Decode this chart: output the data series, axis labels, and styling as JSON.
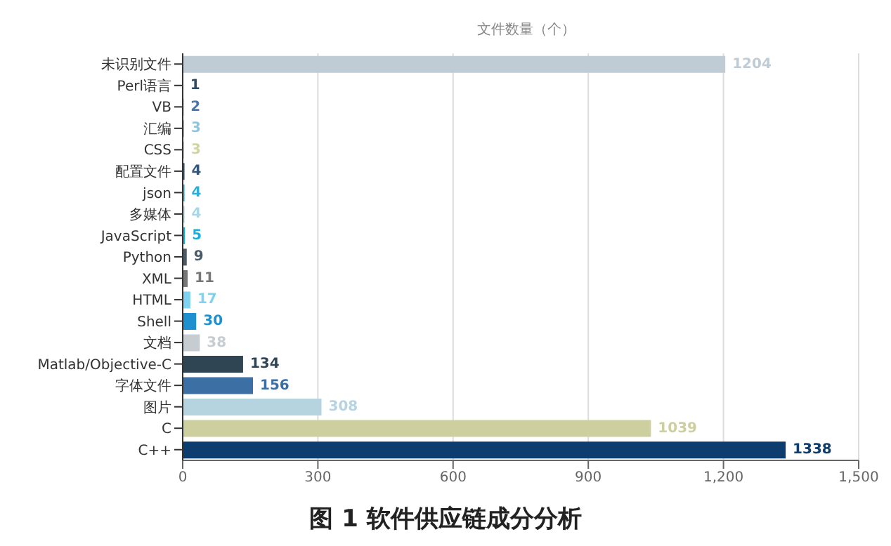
{
  "chart_data": {
    "type": "bar",
    "orientation": "horizontal",
    "title": "图 1 软件供应链成分分析",
    "xlabel": "文件数量（个）",
    "categories": [
      "未识别文件",
      "Perl语言",
      "VB",
      "汇编",
      "CSS",
      "配置文件",
      "json",
      "多媒体",
      "JavaScript",
      "Python",
      "XML",
      "HTML",
      "Shell",
      "文档",
      "Matlab/Objective-C",
      "字体文件",
      "图片",
      "C",
      "C++"
    ],
    "values": [
      1204,
      1,
      2,
      3,
      3,
      4,
      4,
      4,
      5,
      9,
      11,
      17,
      30,
      38,
      134,
      156,
      308,
      1039,
      1338
    ],
    "colors": [
      "#bfccd6",
      "#2e4a62",
      "#4a77a8",
      "#8ec5de",
      "#d0d3a4",
      "#33557a",
      "#2ab0d8",
      "#a8d8e8",
      "#1ab0dc",
      "#4a5b68",
      "#777777",
      "#7fd3f0",
      "#1e90d0",
      "#c5cdd3",
      "#2f4554",
      "#3c6fa3",
      "#b6d3e0",
      "#cdcf9f",
      "#0d3d6e"
    ],
    "xlim": [
      0,
      1500
    ],
    "xticks": [
      0,
      300,
      600,
      900,
      {
        "value": 1200,
        "label": "1,200"
      },
      {
        "value": 1500,
        "label": "1,500"
      }
    ],
    "grid": "x",
    "data_labels": true
  }
}
